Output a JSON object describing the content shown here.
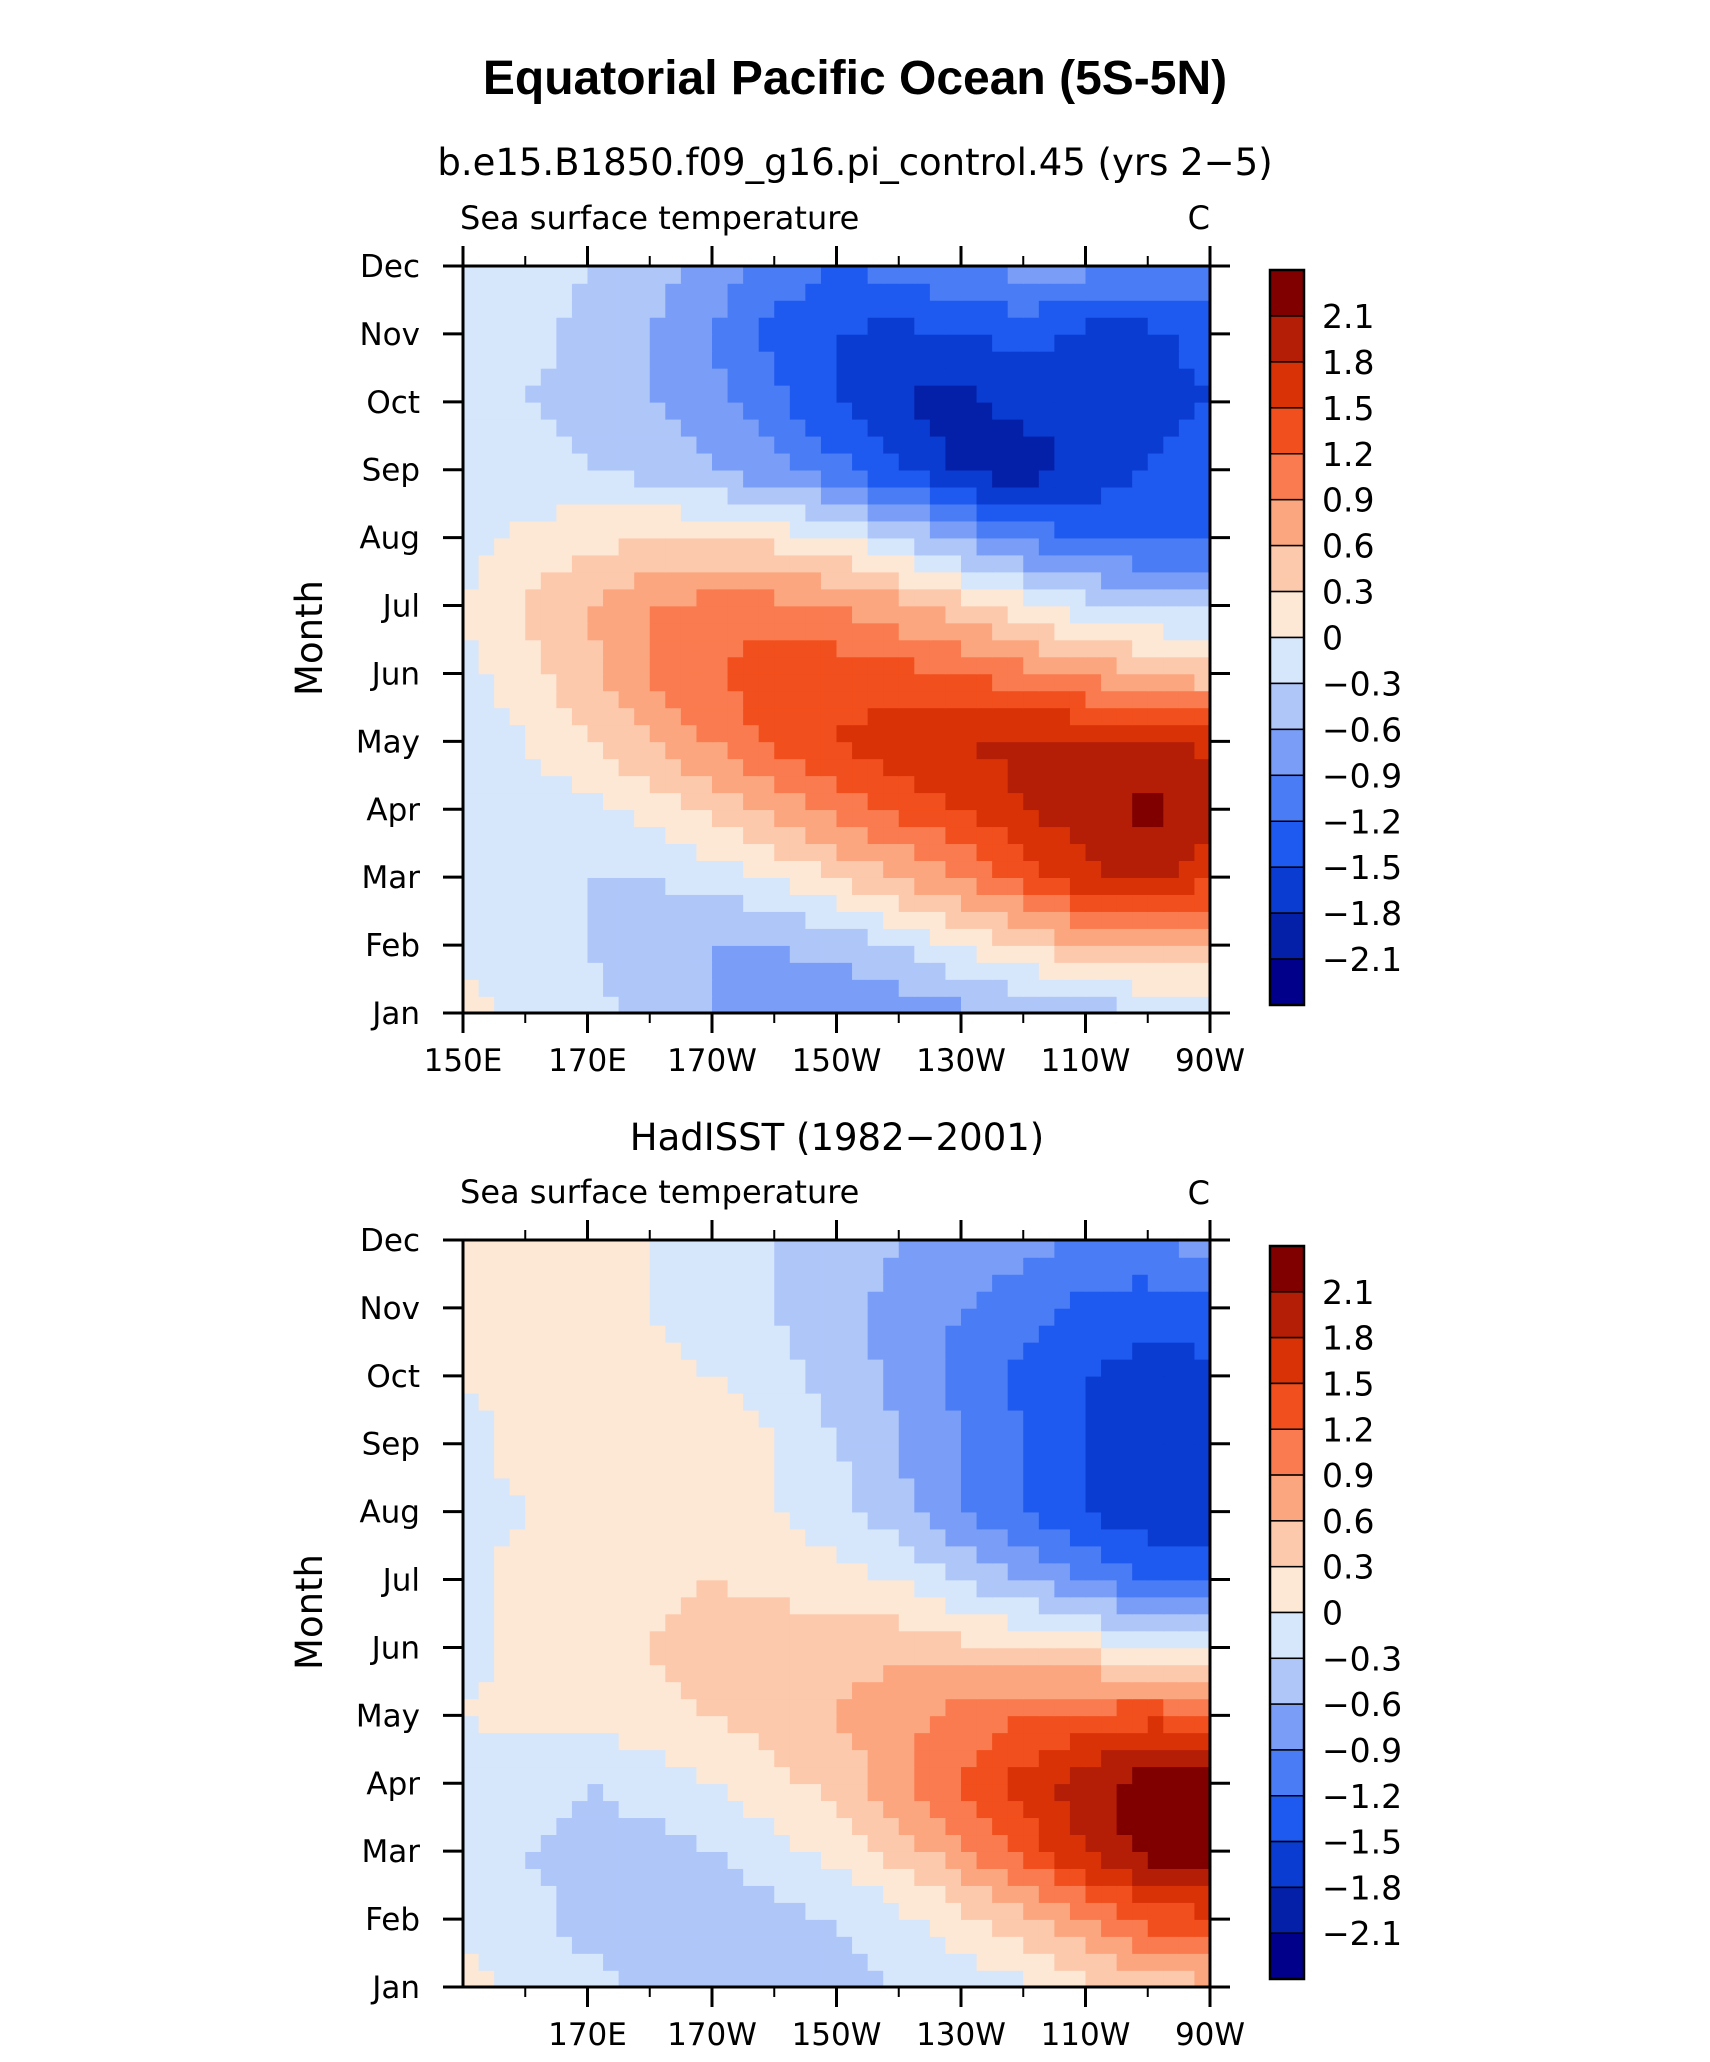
{
  "title": "Equatorial Pacific Ocean (5S-5N)",
  "colors": [
    "#00008B",
    "#0520A8",
    "#0A3CD2",
    "#1E5AF0",
    "#4A7CF5",
    "#7A9EF7",
    "#AFC6F9",
    "#D6E6FB",
    "#FDE8D6",
    "#FCC9AC",
    "#FBA67F",
    "#F97B4F",
    "#F14F1D",
    "#D93206",
    "#B51E06",
    "#800000"
  ],
  "chart_data": [
    {
      "type": "heatmap",
      "title": "b.e15.B1850.f09_g16.pi_control.45 (yrs 2−5)",
      "subtitle_left": "Sea surface temperature",
      "units": "C",
      "ylabel": "Month",
      "xlabel": "",
      "x_ticks": [
        "150E",
        "170E",
        "170W",
        "150W",
        "130W",
        "110W",
        "90W"
      ],
      "y_ticks": [
        "Jan",
        "Feb",
        "Mar",
        "Apr",
        "May",
        "Jun",
        "Jul",
        "Aug",
        "Sep",
        "Oct",
        "Nov",
        "Dec"
      ],
      "x_range": [
        "150E",
        "90W"
      ],
      "colorbar_levels": [
        "2.1",
        "1.8",
        "1.5",
        "1.2",
        "0.9",
        "0.6",
        "0.3",
        "0",
        "−0.3",
        "−0.6",
        "−0.9",
        "−1.2",
        "−1.5",
        "−1.8",
        "−2.1"
      ],
      "lon_grid": [
        "150E",
        "160E",
        "170E",
        "180",
        "170W",
        "160W",
        "150W",
        "140W",
        "130W",
        "120W",
        "110W",
        "100W",
        "90W"
      ],
      "values": [
        [
          0.1,
          -0.1,
          -0.2,
          -0.4,
          -0.6,
          -0.8,
          -0.9,
          -0.8,
          -0.7,
          -0.6,
          -0.5,
          -0.4,
          -0.3
        ],
        [
          -0.1,
          -0.2,
          -0.3,
          -0.5,
          -0.6,
          -0.6,
          -0.5,
          -0.3,
          0.0,
          0.3,
          0.6,
          0.7,
          0.5
        ],
        [
          -0.2,
          -0.2,
          -0.3,
          -0.3,
          -0.2,
          0.0,
          0.3,
          0.6,
          0.9,
          1.3,
          1.7,
          1.9,
          1.6
        ],
        [
          -0.3,
          -0.2,
          -0.1,
          0.1,
          0.4,
          0.7,
          1.0,
          1.3,
          1.5,
          1.8,
          2.0,
          2.2,
          1.9
        ],
        [
          -0.2,
          0.0,
          0.3,
          0.6,
          0.9,
          1.3,
          1.5,
          1.7,
          1.8,
          1.9,
          1.9,
          1.9,
          1.7
        ],
        [
          -0.1,
          0.2,
          0.5,
          0.9,
          1.2,
          1.4,
          1.4,
          1.3,
          1.2,
          1.0,
          0.8,
          0.6,
          0.4
        ],
        [
          0.0,
          0.3,
          0.6,
          0.9,
          1.0,
          1.0,
          0.9,
          0.7,
          0.4,
          0.1,
          -0.2,
          -0.3,
          -0.4
        ],
        [
          -0.1,
          0.1,
          0.2,
          0.3,
          0.3,
          0.2,
          0.0,
          -0.3,
          -0.7,
          -1.0,
          -1.2,
          -1.3,
          -1.3
        ],
        [
          -0.2,
          -0.2,
          -0.3,
          -0.4,
          -0.6,
          -0.8,
          -1.1,
          -1.5,
          -1.9,
          -2.0,
          -1.7,
          -1.5,
          -1.4
        ],
        [
          -0.2,
          -0.3,
          -0.4,
          -0.6,
          -0.8,
          -1.1,
          -1.5,
          -1.8,
          -1.9,
          -1.7,
          -1.6,
          -1.6,
          -1.5
        ],
        [
          -0.1,
          -0.2,
          -0.4,
          -0.6,
          -0.9,
          -1.3,
          -1.5,
          -1.6,
          -1.5,
          -1.4,
          -1.6,
          -1.6,
          -1.4
        ],
        [
          0.0,
          -0.1,
          -0.3,
          -0.5,
          -0.7,
          -1.0,
          -1.2,
          -1.1,
          -0.9,
          -0.8,
          -0.8,
          -0.9,
          -0.9
        ]
      ]
    },
    {
      "type": "heatmap",
      "title": "HadISST (1982−2001)",
      "subtitle_left": "Sea surface temperature",
      "units": "C",
      "ylabel": "Month",
      "xlabel": "",
      "x_ticks": [
        "170E",
        "170W",
        "150W",
        "130W",
        "110W",
        "90W"
      ],
      "y_ticks": [
        "Jan",
        "Feb",
        "Mar",
        "Apr",
        "May",
        "Jun",
        "Jul",
        "Aug",
        "Sep",
        "Oct",
        "Nov",
        "Dec"
      ],
      "x_range": [
        "150E",
        "90W"
      ],
      "colorbar_levels": [
        "2.1",
        "1.8",
        "1.5",
        "1.2",
        "0.9",
        "0.6",
        "0.3",
        "0",
        "−0.3",
        "−0.6",
        "−0.9",
        "−1.2",
        "−1.5",
        "−1.8",
        "−2.1"
      ],
      "lon_grid": [
        "150E",
        "160E",
        "170E",
        "180",
        "170W",
        "160W",
        "150W",
        "140W",
        "130W",
        "120W",
        "110W",
        "100W",
        "90W"
      ],
      "values": [
        [
          0.1,
          -0.1,
          -0.2,
          -0.4,
          -0.5,
          -0.5,
          -0.4,
          -0.3,
          -0.2,
          -0.1,
          0.2,
          0.4,
          0.5
        ],
        [
          -0.1,
          -0.2,
          -0.4,
          -0.5,
          -0.5,
          -0.4,
          -0.3,
          -0.1,
          0.2,
          0.5,
          0.9,
          1.3,
          1.4
        ],
        [
          -0.2,
          -0.3,
          -0.4,
          -0.4,
          -0.3,
          -0.1,
          0.1,
          0.4,
          0.8,
          1.3,
          1.8,
          2.2,
          2.3
        ],
        [
          -0.1,
          -0.2,
          -0.3,
          -0.2,
          0.0,
          0.2,
          0.4,
          0.8,
          1.2,
          1.6,
          2.0,
          2.3,
          2.2
        ],
        [
          0.0,
          0.1,
          0.1,
          0.2,
          0.3,
          0.4,
          0.6,
          0.8,
          1.0,
          1.2,
          1.3,
          1.4,
          1.3
        ],
        [
          -0.1,
          0.1,
          0.2,
          0.3,
          0.4,
          0.5,
          0.5,
          0.5,
          0.4,
          0.3,
          0.2,
          0.0,
          -0.1
        ],
        [
          -0.1,
          0.1,
          0.2,
          0.2,
          0.3,
          0.2,
          0.1,
          0.0,
          -0.3,
          -0.6,
          -0.9,
          -1.2,
          -1.3
        ],
        [
          -0.1,
          0.0,
          0.1,
          0.1,
          0.1,
          0.0,
          -0.2,
          -0.5,
          -0.9,
          -1.2,
          -1.5,
          -1.7,
          -1.8
        ],
        [
          -0.1,
          0.1,
          0.2,
          0.3,
          0.2,
          0.0,
          -0.3,
          -0.6,
          -0.9,
          -1.2,
          -1.5,
          -1.7,
          -1.8
        ],
        [
          0.0,
          0.1,
          0.1,
          0.1,
          0.0,
          -0.2,
          -0.4,
          -0.7,
          -1.0,
          -1.3,
          -1.5,
          -1.6,
          -1.6
        ],
        [
          0.1,
          0.1,
          0.1,
          0.0,
          -0.2,
          -0.3,
          -0.5,
          -0.7,
          -0.9,
          -1.1,
          -1.3,
          -1.4,
          -1.3
        ],
        [
          0.1,
          0.1,
          0.1,
          0.0,
          -0.2,
          -0.3,
          -0.4,
          -0.6,
          -0.7,
          -0.8,
          -0.9,
          -0.9,
          -0.8
        ]
      ]
    }
  ]
}
